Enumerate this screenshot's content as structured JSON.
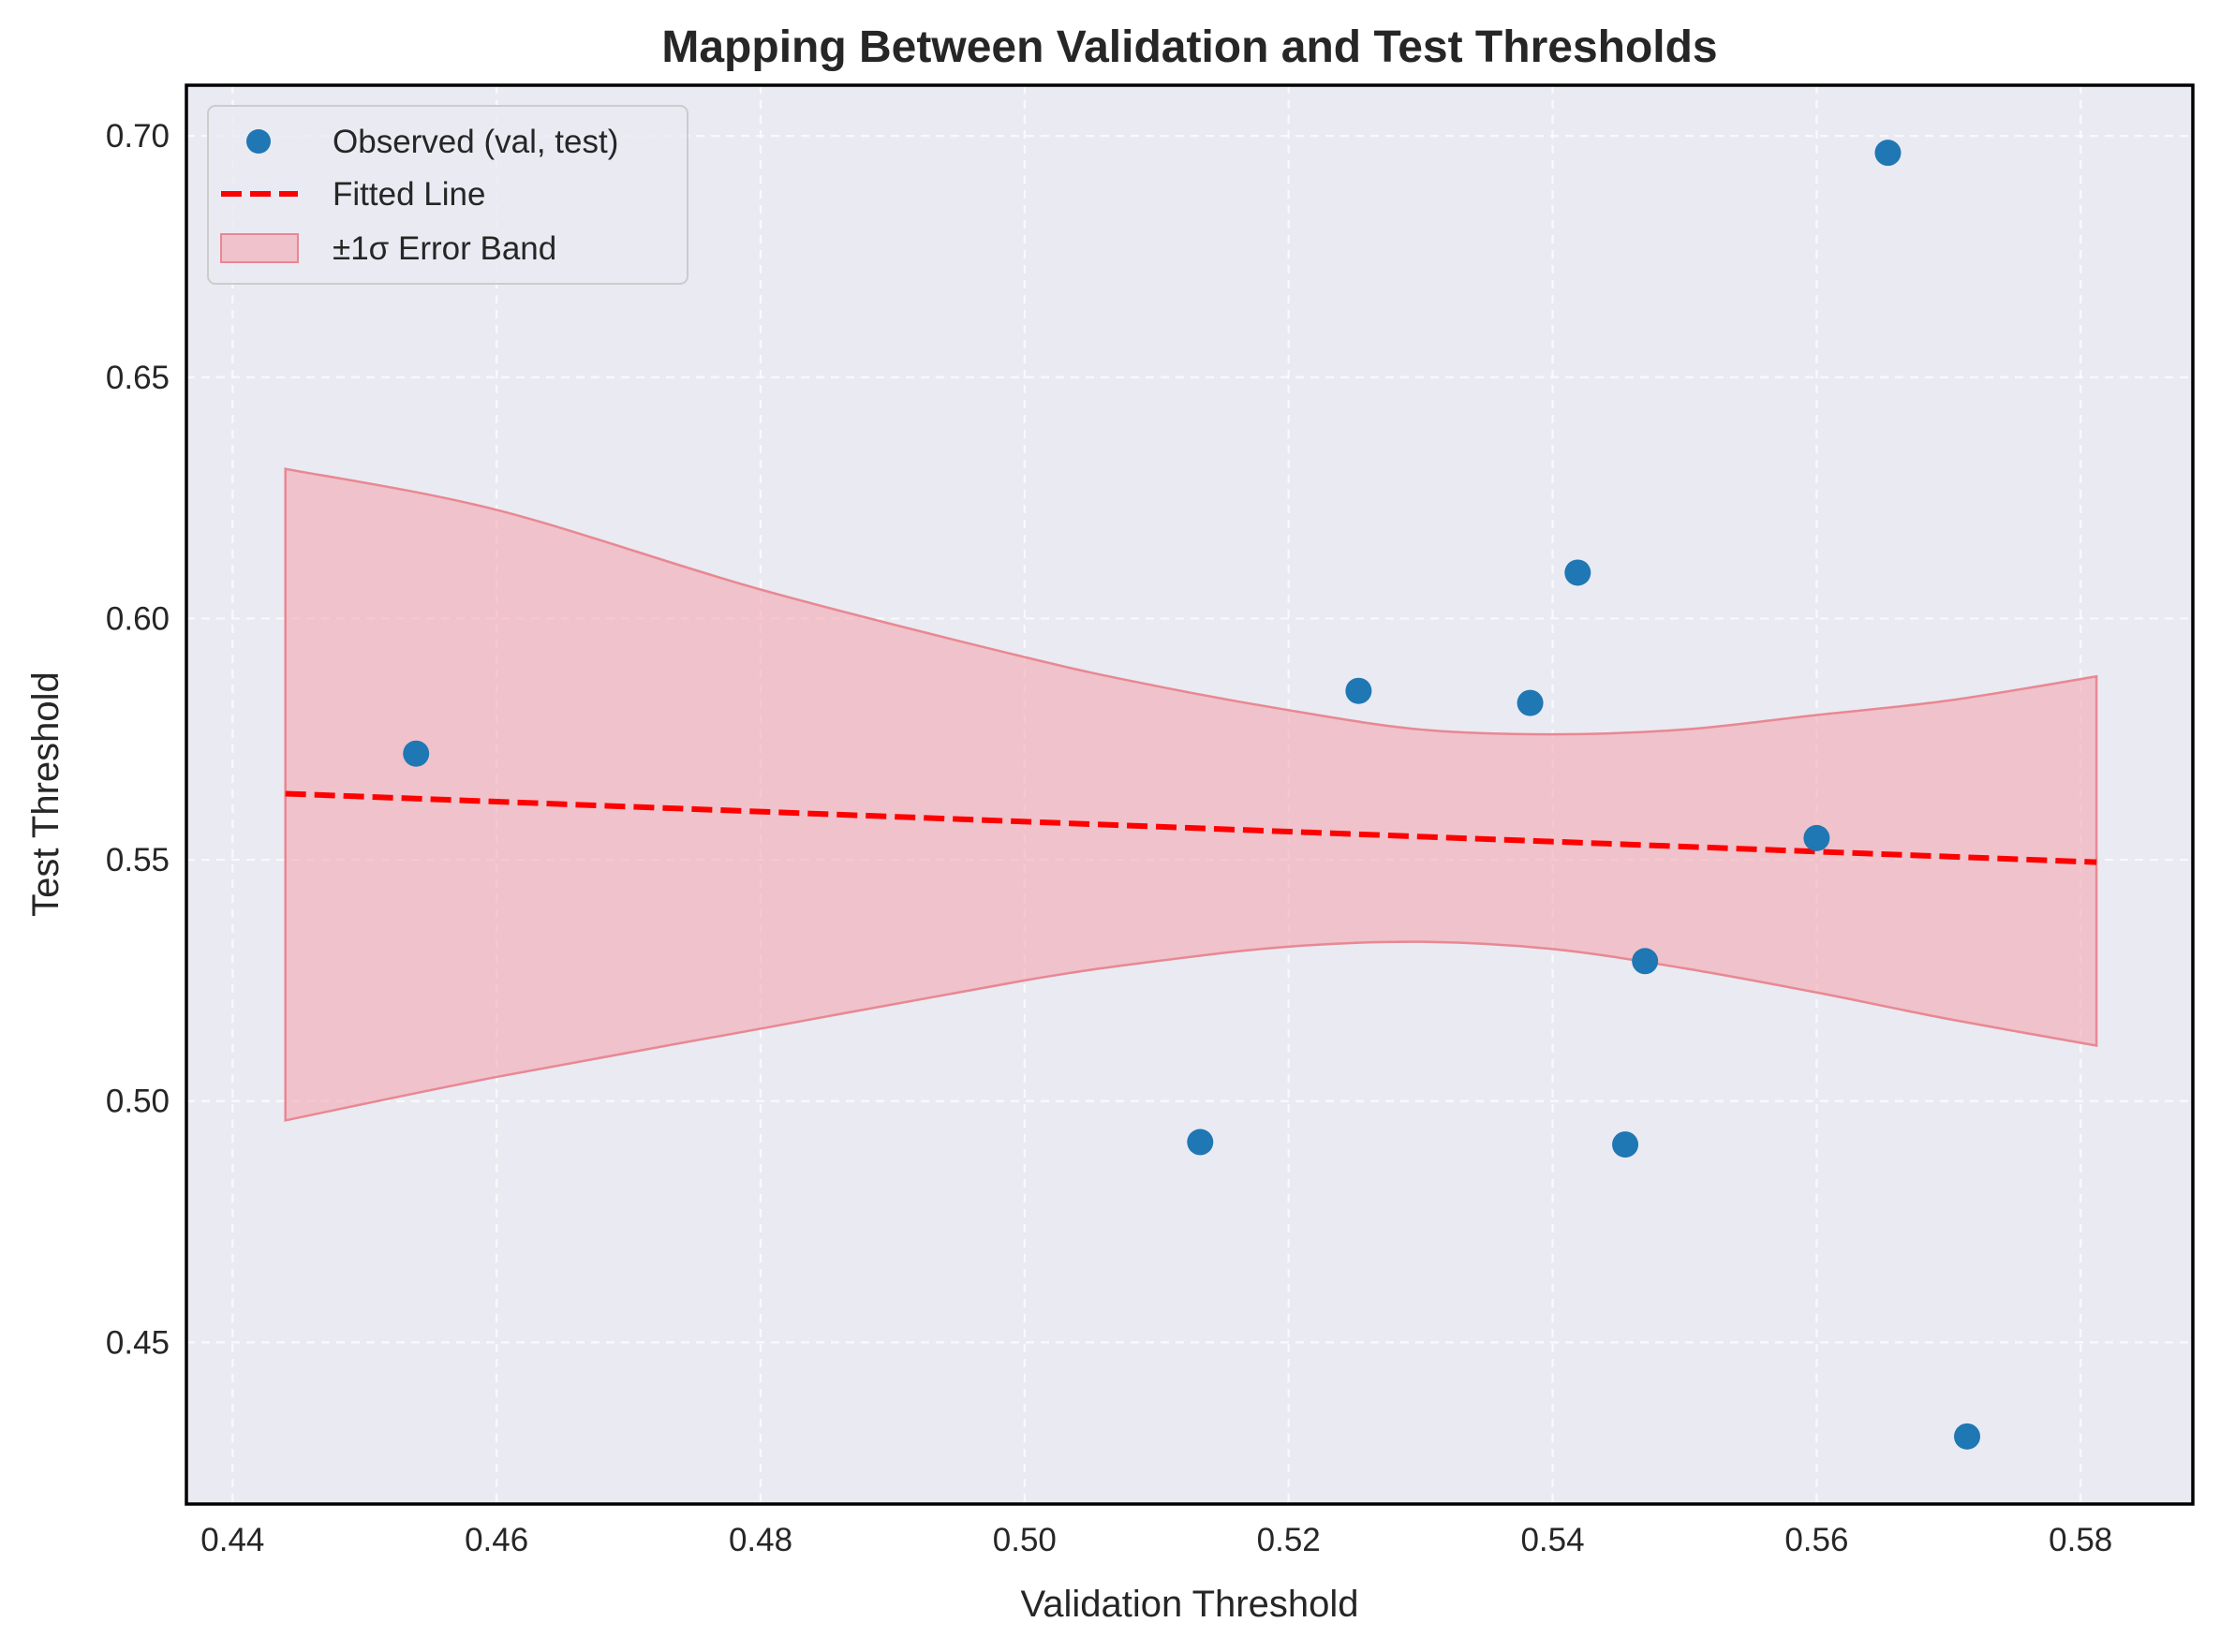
{
  "chart_data": {
    "type": "scatter",
    "title": "Mapping Between Validation and Test Thresholds",
    "xlabel": "Validation Threshold",
    "ylabel": "Test Threshold",
    "xlim": [
      0.4365,
      0.5885
    ],
    "ylim": [
      0.4165,
      0.7105
    ],
    "xticks": [
      0.44,
      0.46,
      0.48,
      0.5,
      0.52,
      0.54,
      0.56,
      0.58
    ],
    "xtick_labels": [
      "0.44",
      "0.46",
      "0.48",
      "0.50",
      "0.52",
      "0.54",
      "0.56",
      "0.58"
    ],
    "yticks": [
      0.45,
      0.5,
      0.55,
      0.6,
      0.65,
      0.7
    ],
    "ytick_labels": [
      "0.45",
      "0.50",
      "0.55",
      "0.60",
      "0.65",
      "0.70"
    ],
    "grid": true,
    "background": "#eaeaf2",
    "legend_position": "upper-left",
    "series": [
      {
        "name": "Observed (val, test)",
        "kind": "scatter",
        "color": "#1f77b4",
        "x": [
          0.4539,
          0.5133,
          0.5253,
          0.5383,
          0.5419,
          0.5455,
          0.547,
          0.56,
          0.5654,
          0.5714
        ],
        "y": [
          0.572,
          0.4915,
          0.585,
          0.5825,
          0.6095,
          0.491,
          0.529,
          0.5545,
          0.6965,
          0.4305
        ]
      },
      {
        "name": "Fitted Line",
        "kind": "line",
        "style": "dashed",
        "color": "#ff0000",
        "x": [
          0.444,
          0.5812
        ],
        "y": [
          0.5637,
          0.5495
        ]
      },
      {
        "name": "±1σ Error Band",
        "kind": "band",
        "color": "#f4a6b0",
        "edge_color": "#e88892",
        "x": [
          0.444,
          0.46,
          0.48,
          0.5,
          0.51,
          0.52,
          0.53,
          0.54,
          0.55,
          0.56,
          0.57,
          0.5812
        ],
        "upper": [
          0.631,
          0.6225,
          0.606,
          0.592,
          0.586,
          0.581,
          0.577,
          0.576,
          0.577,
          0.58,
          0.583,
          0.588
        ],
        "lower": [
          0.496,
          0.505,
          0.515,
          0.525,
          0.529,
          0.532,
          0.533,
          0.5315,
          0.5275,
          0.5225,
          0.517,
          0.5115
        ]
      }
    ]
  }
}
